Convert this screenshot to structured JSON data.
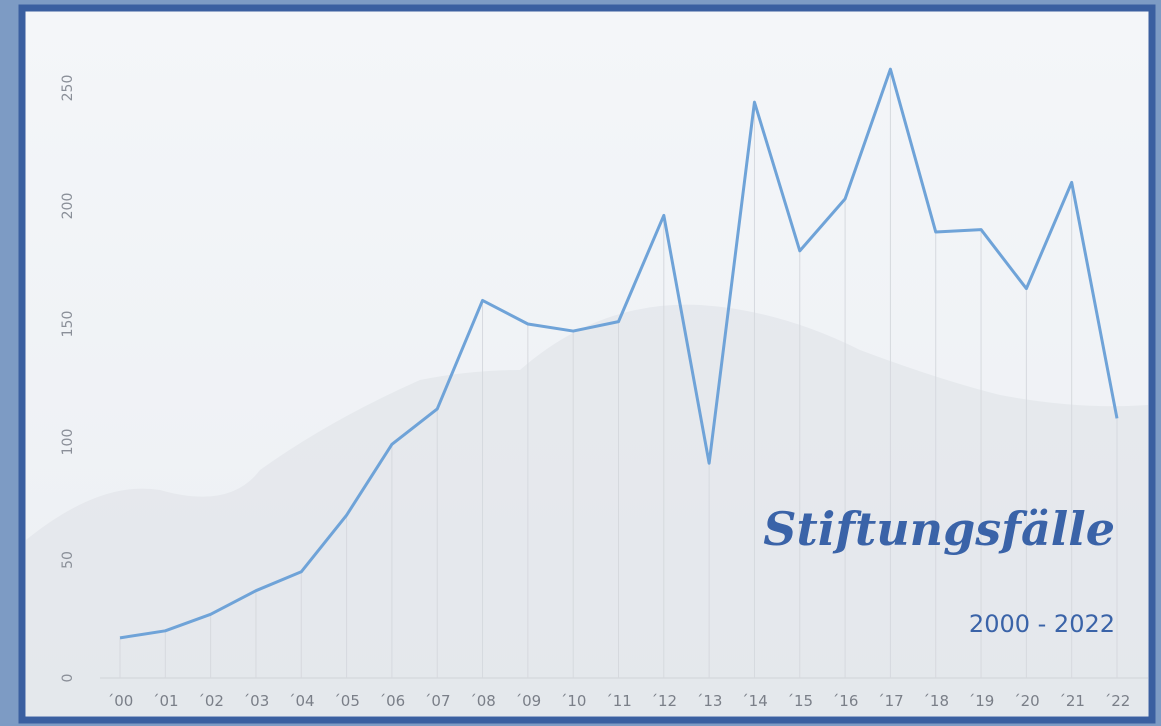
{
  "chart_data": {
    "type": "line",
    "title": "Stiftungsfälle",
    "subtitle": "2000 - 2022",
    "categories": [
      "´00",
      "´01",
      "´02",
      "´03",
      "´04",
      "´05",
      "´06",
      "´07",
      "´08",
      "´09",
      "´10",
      "´11",
      "´12",
      "´13",
      "´14",
      "´15",
      "´16",
      "´17",
      "´18",
      "´19",
      "´20",
      "´21",
      "´22"
    ],
    "values": [
      17,
      20,
      27,
      37,
      45,
      69,
      99,
      114,
      160,
      150,
      147,
      151,
      196,
      91,
      244,
      181,
      203,
      258,
      189,
      190,
      165,
      210,
      110
    ],
    "color": "#6fa3d8",
    "ylim": [
      0,
      280
    ],
    "yticks": [
      0,
      50,
      100,
      150,
      200,
      250
    ],
    "grid": true
  }
}
